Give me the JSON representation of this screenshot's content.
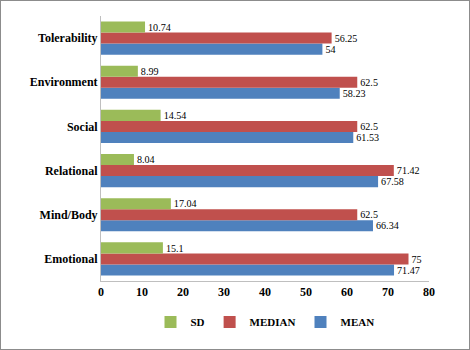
{
  "chart_data": {
    "type": "bar",
    "orientation": "horizontal",
    "categories": [
      "Emotional",
      "Mind/Body",
      "Relational",
      "Social",
      "Environment",
      "Tolerability"
    ],
    "series": [
      {
        "name": "SD",
        "color": "#9bbb59",
        "values": [
          15.1,
          17.04,
          8.04,
          14.54,
          8.99,
          10.74
        ]
      },
      {
        "name": "MEDIAN",
        "color": "#c0504d",
        "values": [
          75,
          62.5,
          71.42,
          62.5,
          62.5,
          56.25
        ]
      },
      {
        "name": "MEAN",
        "color": "#4f81bd",
        "values": [
          71.47,
          66.34,
          67.58,
          61.53,
          58.23,
          54
        ]
      }
    ],
    "xlim": [
      0,
      80
    ],
    "xticks": [
      0,
      10,
      20,
      30,
      40,
      50,
      60,
      70,
      80
    ],
    "grid": false,
    "legend": "bottom",
    "data_labels": true
  }
}
